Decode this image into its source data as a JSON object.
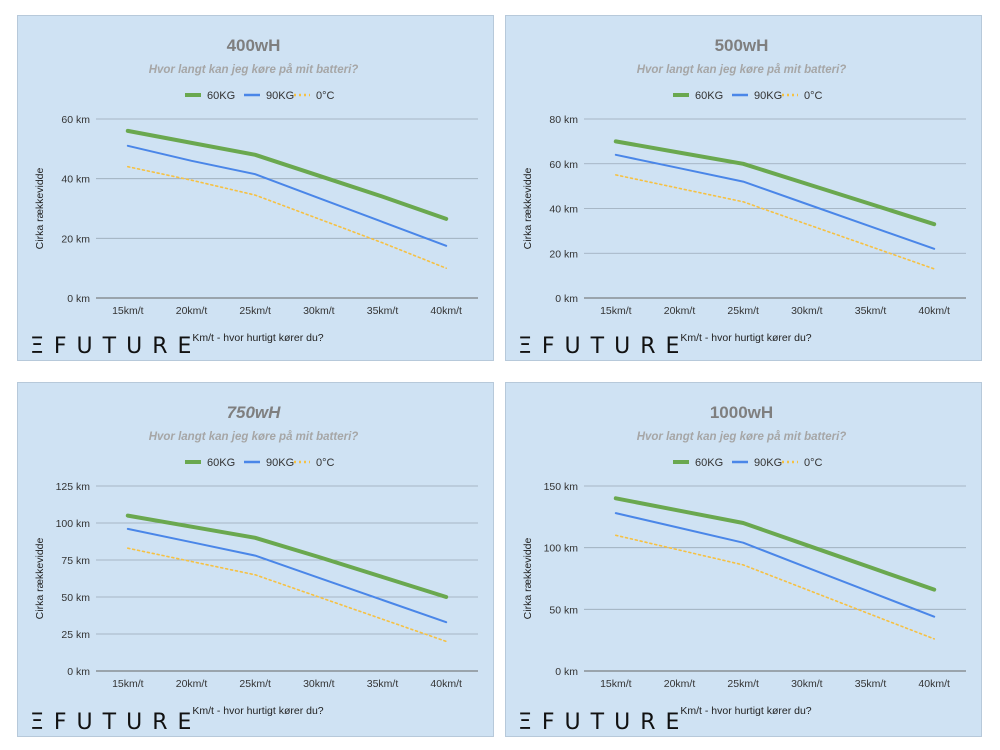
{
  "colors": {
    "s60": "#6aa84f",
    "s90": "#4a86e8",
    "s0c": "#f6c142",
    "grid": "#9aa9b7"
  },
  "logo_text": "ΞFUTURE",
  "chart_data": [
    {
      "type": "line",
      "title": "400wH",
      "subtitle": "Hvor langt kan jeg køre på mit batteri?",
      "xlabel": "Km/t - hvor hurtigt kører du?",
      "ylabel": "Cirka rækkevidde",
      "categories": [
        "15km/t",
        "20km/t",
        "25km/t",
        "30km/t",
        "35km/t",
        "40km/t"
      ],
      "ylim": [
        0,
        60
      ],
      "yticks": [
        0,
        20,
        40,
        60
      ],
      "ytick_labels": [
        "0 km",
        "20 km",
        "40 km",
        "60 km"
      ],
      "grid": true,
      "legend": "top-center",
      "series": [
        {
          "name": "60KG",
          "values": [
            56,
            52,
            48,
            41,
            34,
            26.5
          ]
        },
        {
          "name": "90KG",
          "values": [
            51,
            46,
            41.5,
            33.5,
            25.5,
            17.5
          ]
        },
        {
          "name": "0°C",
          "values": [
            44,
            39.5,
            34.5,
            26.5,
            18.5,
            10
          ]
        }
      ]
    },
    {
      "type": "line",
      "title": "500wH",
      "subtitle": "Hvor langt kan jeg køre på mit batteri?",
      "xlabel": "Km/t - hvor hurtigt kører du?",
      "ylabel": "Cirka rækkevidde",
      "categories": [
        "15km/t",
        "20km/t",
        "25km/t",
        "30km/t",
        "35km/t",
        "40km/t"
      ],
      "ylim": [
        0,
        80
      ],
      "yticks": [
        0,
        20,
        40,
        60,
        80
      ],
      "ytick_labels": [
        "0 km",
        "20 km",
        "40 km",
        "60 km",
        "80 km"
      ],
      "grid": true,
      "legend": "top-center",
      "series": [
        {
          "name": "60KG",
          "values": [
            70,
            65,
            60,
            51,
            42,
            33
          ]
        },
        {
          "name": "90KG",
          "values": [
            64,
            58,
            52,
            42,
            32,
            22
          ]
        },
        {
          "name": "0°C",
          "values": [
            55,
            49,
            43,
            33,
            23,
            13
          ]
        }
      ]
    },
    {
      "type": "line",
      "title": "750wH",
      "subtitle": "Hvor langt kan jeg køre på mit batteri?",
      "xlabel": "Km/t - hvor hurtigt kører du?",
      "ylabel": "Cirka rækkevidde",
      "categories": [
        "15km/t",
        "20km/t",
        "25km/t",
        "30km/t",
        "35km/t",
        "40km/t"
      ],
      "ylim": [
        0,
        125
      ],
      "yticks": [
        0,
        25,
        50,
        75,
        100,
        125
      ],
      "ytick_labels": [
        "0 km",
        "25 km",
        "50 km",
        "75 km",
        "100 km",
        "125 km"
      ],
      "grid": true,
      "legend": "top-center",
      "series": [
        {
          "name": "60KG",
          "values": [
            105,
            97.5,
            90,
            77,
            63.5,
            50
          ]
        },
        {
          "name": "90KG",
          "values": [
            96,
            87,
            78,
            63,
            48,
            33
          ]
        },
        {
          "name": "0°C",
          "values": [
            83,
            74,
            65,
            50,
            35,
            20
          ]
        }
      ]
    },
    {
      "type": "line",
      "title": "1000wH",
      "subtitle": "Hvor langt kan jeg køre på mit batteri?",
      "xlabel": "Km/t - hvor hurtigt kører du?",
      "ylabel": "Cirka rækkevidde",
      "categories": [
        "15km/t",
        "20km/t",
        "25km/t",
        "30km/t",
        "35km/t",
        "40km/t"
      ],
      "ylim": [
        0,
        150
      ],
      "yticks": [
        0,
        50,
        100,
        150
      ],
      "ytick_labels": [
        "0 km",
        "50 km",
        "100 km",
        "150 km"
      ],
      "grid": true,
      "legend": "top-center",
      "series": [
        {
          "name": "60KG",
          "values": [
            140,
            130,
            120,
            102,
            84,
            66
          ]
        },
        {
          "name": "90KG",
          "values": [
            128,
            116,
            104,
            84,
            64,
            44
          ]
        },
        {
          "name": "0°C",
          "values": [
            110,
            98,
            86,
            66,
            46,
            26
          ]
        }
      ]
    }
  ]
}
